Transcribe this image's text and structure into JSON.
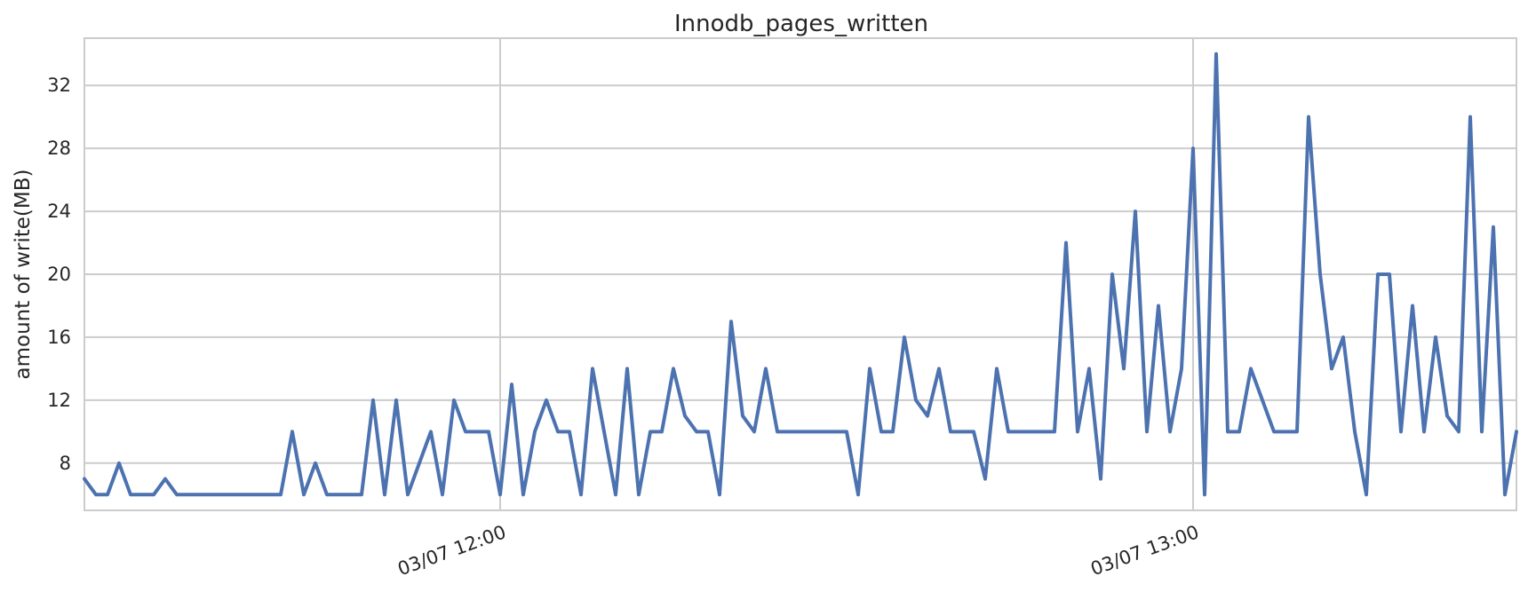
{
  "chart_data": {
    "type": "line",
    "title": "Innodb_pages_written",
    "xlabel": "",
    "ylabel": "amount of write(MB)",
    "x_ticks": [
      {
        "label": "03/07 12:00",
        "index": 36
      },
      {
        "label": "03/07 13:00",
        "index": 96
      }
    ],
    "y_ticks": [
      8,
      12,
      16,
      20,
      24,
      28,
      32
    ],
    "ylim": [
      5,
      35
    ],
    "grid": true,
    "color": "#4c72b0",
    "series": [
      {
        "name": "",
        "values": [
          7,
          6,
          6,
          8,
          6,
          6,
          6,
          7,
          6,
          6,
          6,
          6,
          6,
          6,
          6,
          6,
          6,
          6,
          10,
          6,
          8,
          6,
          6,
          6,
          6,
          12,
          6,
          12,
          6,
          8,
          10,
          6,
          12,
          10,
          10,
          10,
          6,
          13,
          6,
          10,
          12,
          10,
          10,
          6,
          14,
          10,
          6,
          14,
          6,
          10,
          10,
          14,
          11,
          10,
          10,
          6,
          17,
          11,
          10,
          14,
          10,
          10,
          10,
          10,
          10,
          10,
          10,
          6,
          14,
          10,
          10,
          16,
          12,
          11,
          14,
          10,
          10,
          10,
          7,
          14,
          10,
          10,
          10,
          10,
          10,
          22,
          10,
          14,
          7,
          20,
          14,
          24,
          10,
          18,
          10,
          14,
          28,
          6,
          34,
          10,
          10,
          14,
          12,
          10,
          10,
          10,
          30,
          20,
          14,
          16,
          10,
          6,
          20,
          20,
          10,
          18,
          10,
          16,
          11,
          10,
          30,
          10,
          23,
          6,
          10
        ]
      }
    ]
  }
}
